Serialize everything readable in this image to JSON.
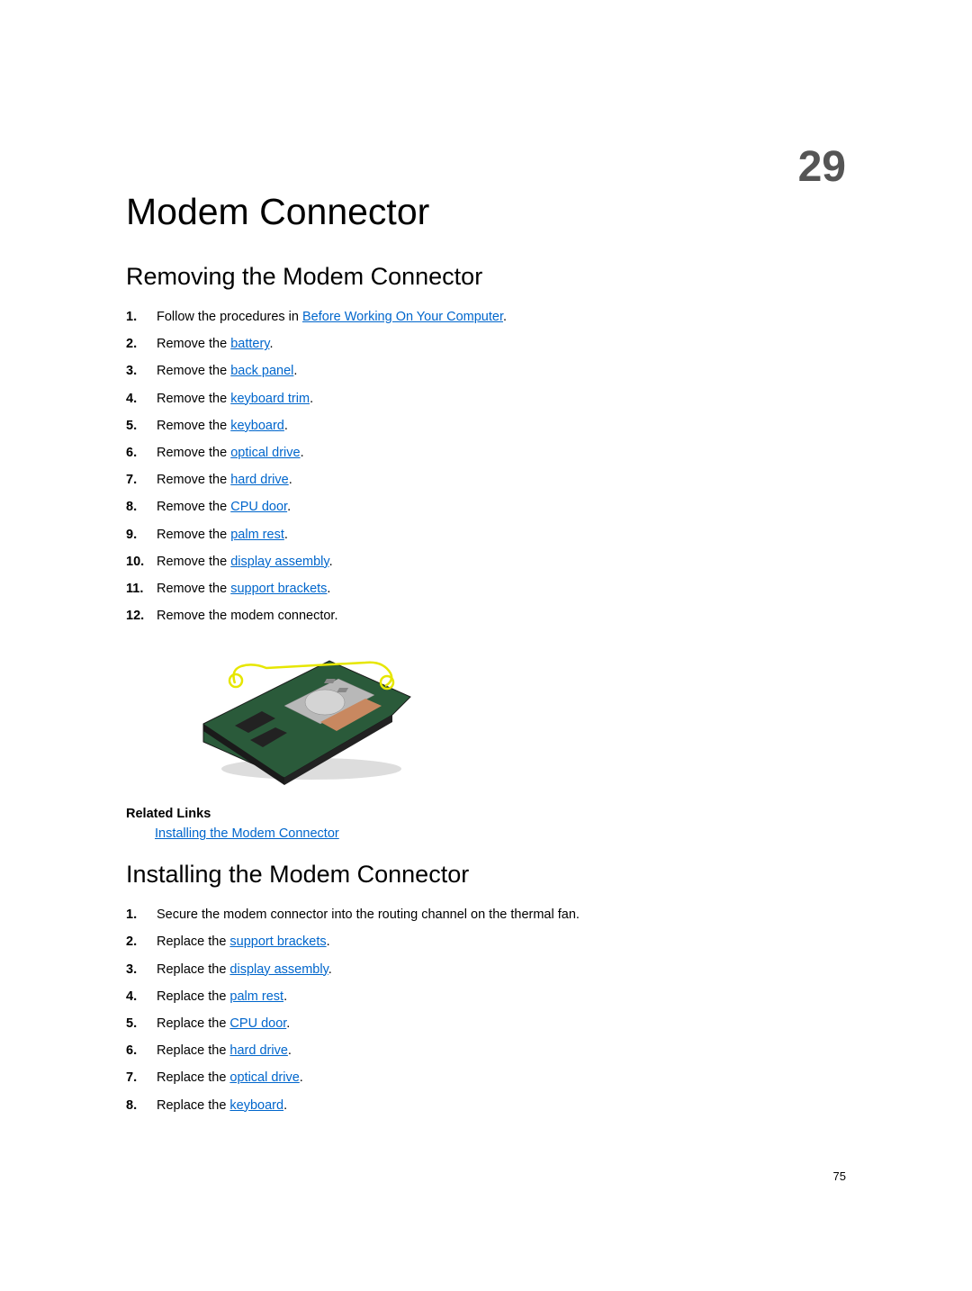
{
  "page": {
    "chapter_number": "29",
    "chapter_title": "Modem Connector",
    "page_number": "75",
    "background_color": "#ffffff",
    "text_color": "#000000",
    "link_color": "#0066cc",
    "chapter_number_color": "#555555",
    "heading_font": "Trebuchet MS",
    "body_font": "Arial",
    "body_fontsize": 14.5,
    "chapter_title_fontsize": 41,
    "chapter_number_fontsize": 48,
    "section_heading_fontsize": 27
  },
  "sections": {
    "removing": {
      "heading": "Removing the Modem Connector",
      "steps": [
        {
          "num": "1.",
          "prefix": "Follow the procedures in ",
          "link": "Before Working On Your Computer",
          "suffix": "."
        },
        {
          "num": "2.",
          "prefix": "Remove the ",
          "link": "battery",
          "suffix": "."
        },
        {
          "num": "3.",
          "prefix": "Remove the ",
          "link": "back panel",
          "suffix": "."
        },
        {
          "num": "4.",
          "prefix": "Remove the ",
          "link": "keyboard trim",
          "suffix": "."
        },
        {
          "num": "5.",
          "prefix": "Remove the ",
          "link": "keyboard",
          "suffix": "."
        },
        {
          "num": "6.",
          "prefix": "Remove the ",
          "link": "optical drive",
          "suffix": "."
        },
        {
          "num": "7.",
          "prefix": "Remove the ",
          "link": "hard drive",
          "suffix": "."
        },
        {
          "num": "8.",
          "prefix": "Remove the ",
          "link": "CPU door",
          "suffix": "."
        },
        {
          "num": "9.",
          "prefix": "Remove the ",
          "link": "palm rest",
          "suffix": "."
        },
        {
          "num": "10.",
          "prefix": "Remove the ",
          "link": "display assembly",
          "suffix": "."
        },
        {
          "num": "11.",
          "prefix": "Remove the ",
          "link": "support brackets",
          "suffix": "."
        },
        {
          "num": "12.",
          "prefix": "Remove the modem connector.",
          "link": "",
          "suffix": ""
        }
      ]
    },
    "related": {
      "heading": "Related Links",
      "link": "Installing the Modem Connector"
    },
    "installing": {
      "heading": "Installing the Modem Connector",
      "steps": [
        {
          "num": "1.",
          "prefix": "Secure the modem connector into the routing channel on the thermal fan.",
          "link": "",
          "suffix": ""
        },
        {
          "num": "2.",
          "prefix": "Replace the ",
          "link": "support brackets",
          "suffix": "."
        },
        {
          "num": "3.",
          "prefix": "Replace the ",
          "link": "display assembly",
          "suffix": "."
        },
        {
          "num": "4.",
          "prefix": "Replace the ",
          "link": "palm rest",
          "suffix": "."
        },
        {
          "num": "5.",
          "prefix": "Replace the ",
          "link": "CPU door",
          "suffix": "."
        },
        {
          "num": "6.",
          "prefix": "Replace the ",
          "link": "hard drive",
          "suffix": "."
        },
        {
          "num": "7.",
          "prefix": "Replace the ",
          "link": "optical drive",
          "suffix": "."
        },
        {
          "num": "8.",
          "prefix": "Replace the ",
          "link": "keyboard",
          "suffix": "."
        }
      ]
    }
  },
  "figure": {
    "board_fill": "#2a5a3a",
    "board_stroke": "#1a1a1a",
    "silver_fill": "#b8b8b8",
    "copper_fill": "#c88860",
    "chip_fill": "#222222",
    "callout_stroke": "#e6e600",
    "callout_fill": "none",
    "callout_stroke_width": 2.5
  }
}
